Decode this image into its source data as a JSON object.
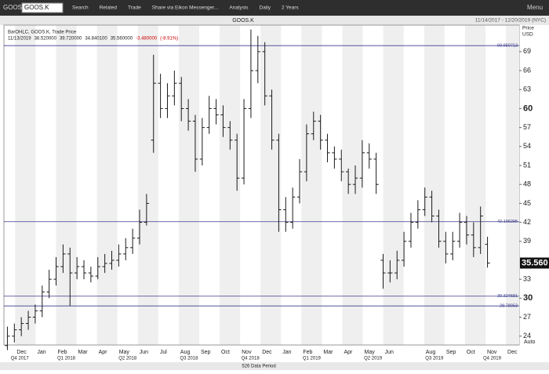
{
  "toolbar": {
    "symbol": "GOOS.K",
    "items": [
      "Search",
      "Related",
      "Trade",
      "Share via Eikon Messenger...",
      "Analysis",
      "Daily",
      "2 Years"
    ],
    "menu": "Menu"
  },
  "chart_data": {
    "type": "ohlc",
    "title": "GOOS.K",
    "date_range": "11/14/2017 - 12/20/2019 (NYC)",
    "legend": {
      "name": "BarOHLC, GOOS.K, Trade Price",
      "date": "11/13/2019",
      "values": [
        "38.520000",
        "39.720000",
        "34.840100",
        "35.560000"
      ],
      "change": "-3.480000",
      "change_pct": "(-8.91%)"
    },
    "y_axis_label": [
      "Price",
      "USD"
    ],
    "categories": [
      null,
      "Dec",
      "Jan",
      "Feb",
      "Mar",
      "Apr",
      "May",
      "Jun",
      "Jul",
      "Aug",
      "Sep",
      "Oct",
      "Nov",
      "Dec",
      "Jan",
      "Feb",
      "Mar",
      "Apr",
      "May",
      "Jun",
      null,
      "Aug",
      "Sep",
      "Oct",
      "Nov",
      "Dec"
    ],
    "quarters": [
      "Q4 2017",
      "Q1 2018",
      "Q2 2018",
      "Q3 2018",
      "Q4 2018",
      "Q1 2019",
      "Q2 2019",
      "Q3 2019",
      "Q4 2019"
    ],
    "footer": "526 Data Period",
    "scale_mode": "Auto",
    "color": "#1a1a1a",
    "open": [
      22.5,
      24,
      25,
      26,
      27,
      28,
      31,
      33,
      35,
      37,
      34,
      35,
      34,
      33.5,
      35,
      35.5,
      36,
      37,
      38,
      39.5,
      42,
      55,
      64,
      60,
      62,
      64,
      60,
      58,
      52,
      57,
      60,
      59,
      57,
      55,
      49,
      60,
      66,
      69,
      62,
      55,
      44,
      42,
      46,
      50,
      56,
      58,
      55,
      53,
      52,
      50,
      48,
      49,
      53,
      52,
      36,
      34,
      34,
      36,
      39,
      42,
      44,
      46,
      43,
      39,
      37,
      39,
      42,
      40,
      38,
      38.52
    ],
    "high": [
      25.5,
      26,
      27,
      28,
      29,
      32,
      34.5,
      36.5,
      38.5,
      38,
      36.5,
      36,
      35,
      36.5,
      37,
      37.5,
      38.5,
      39.5,
      41,
      44,
      46.5,
      68.5,
      65.5,
      64,
      66,
      65,
      61.5,
      59,
      58.5,
      62,
      61.5,
      60.5,
      58,
      56,
      61.5,
      72.5,
      71.5,
      70.5,
      63,
      56,
      46,
      47.5,
      52,
      57.5,
      59.5,
      59,
      56,
      54,
      53.5,
      50.5,
      51,
      55,
      54.5,
      53,
      37,
      36,
      37.5,
      40.5,
      43.5,
      45.5,
      47.5,
      47,
      44,
      40.5,
      40.5,
      43.5,
      43,
      42,
      44.5,
      39.72
    ],
    "low": [
      21.8,
      23,
      24,
      25,
      26,
      27,
      30,
      32,
      34,
      28.8,
      33,
      33,
      32.5,
      33,
      34,
      34.5,
      35,
      36,
      37,
      38.5,
      41.5,
      53,
      58.5,
      58.5,
      60.5,
      58,
      56.5,
      50,
      51,
      56,
      57.5,
      55.5,
      53.5,
      47,
      48,
      58.5,
      64,
      60.5,
      53.5,
      40.5,
      40.5,
      41,
      45,
      48.5,
      55,
      53.5,
      51.5,
      50.5,
      48.5,
      46.5,
      46.5,
      47.5,
      50.5,
      46.5,
      31.5,
      32.5,
      33,
      35,
      38,
      41,
      43,
      42,
      38,
      35.5,
      36,
      38,
      38.5,
      36.5,
      37,
      34.84
    ],
    "close": [
      24,
      25,
      26,
      27,
      28,
      31,
      33,
      35,
      37,
      34,
      35,
      34,
      33.5,
      35,
      35.5,
      36,
      37,
      38,
      39.5,
      42,
      45,
      64,
      60,
      62,
      64,
      60,
      58,
      52,
      57,
      60,
      59,
      57,
      55,
      49,
      60,
      66,
      69,
      62,
      55,
      44,
      42,
      46,
      50,
      56,
      58,
      55,
      53,
      52,
      50,
      48,
      49,
      53,
      52,
      48,
      34,
      34,
      36,
      39,
      42,
      44,
      46,
      43,
      39,
      37,
      39,
      42,
      40,
      38,
      43,
      35.56
    ],
    "last_price": 35.56,
    "last_price_label": "35.560",
    "reference_lines": [
      69.950713,
      42.106295,
      30.324581,
      28.78053
    ],
    "reference_color": "#3a3a8c",
    "ylim": [
      22.6,
      73.2
    ],
    "yticks": [
      24,
      27,
      30,
      33,
      39,
      42,
      45,
      48,
      51,
      54,
      57,
      60,
      63,
      66,
      69
    ]
  }
}
